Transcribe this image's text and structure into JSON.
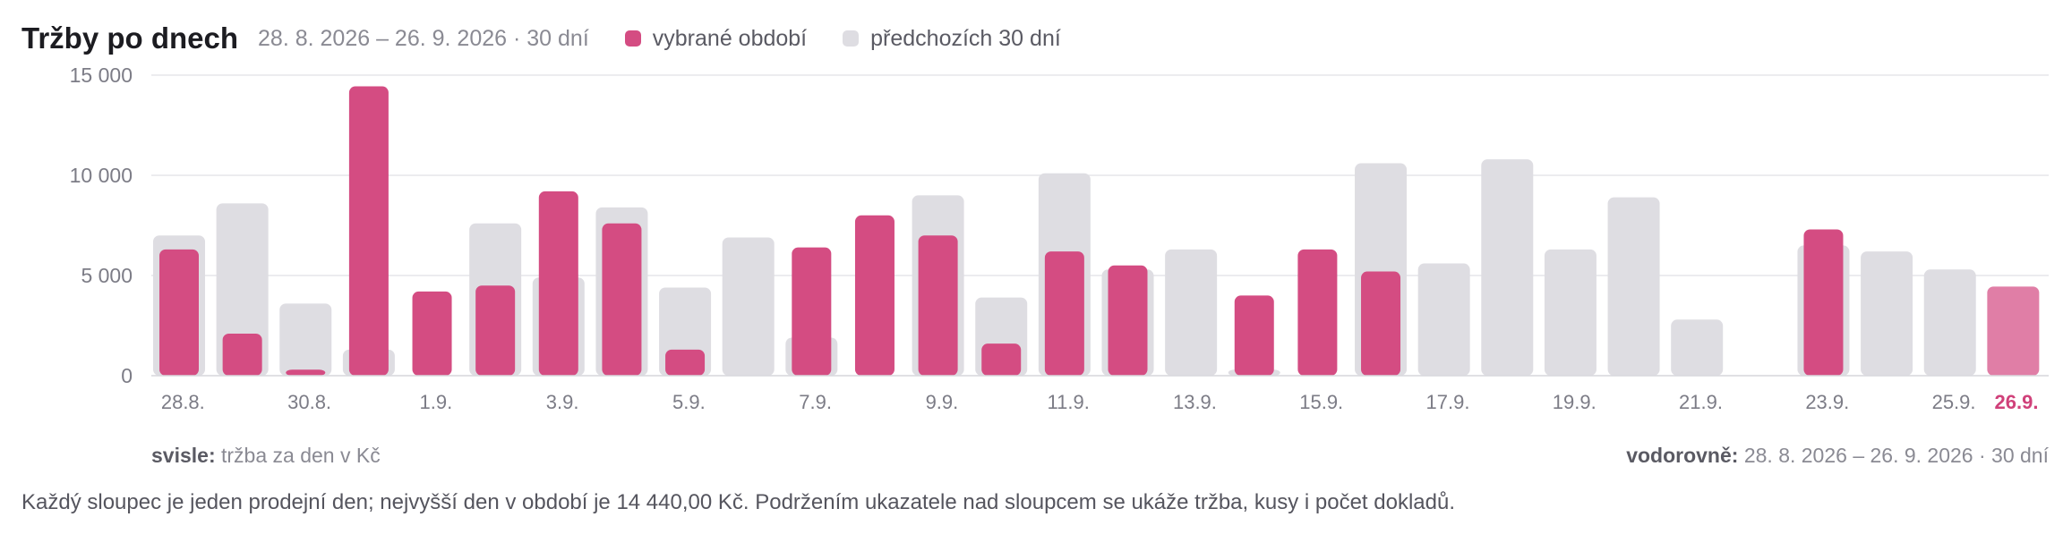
{
  "header": {
    "title": "Tržby po dnech",
    "range": "28. 8. 2026 – 26. 9. 2026 · 30 dní",
    "legend_current": "vybrané období",
    "legend_previous": "předchozích 30 dní"
  },
  "axis_notes": {
    "y_label": "svisle:",
    "y_text": "tržba za den v Kč",
    "x_label": "vodorovně:",
    "x_text": "28. 8. 2026 – 26. 9. 2026 · 30 dní"
  },
  "footer": {
    "text": "Každý sloupec je jeden prodejní den; nejvyšší den v období je 14 440,00 Kč. Podržením ukazatele nad sloupcem se ukáže tržba, kusy i počet dokladů."
  },
  "colors": {
    "current": "#d44c82",
    "current_today": "#e07ea6",
    "previous": "#dedde2",
    "today_label": "#d0417a",
    "grid": "#e6e6ea",
    "tick_text": "#7c7c86"
  },
  "chart_data": {
    "type": "bar",
    "categories": [
      "28.8.",
      "29.8.",
      "30.8.",
      "31.8.",
      "1.9.",
      "2.9.",
      "3.9.",
      "4.9.",
      "5.9.",
      "6.9.",
      "7.9.",
      "8.9.",
      "9.9.",
      "10.9.",
      "11.9.",
      "12.9.",
      "13.9.",
      "14.9.",
      "15.9.",
      "16.9.",
      "17.9.",
      "18.9.",
      "19.9.",
      "20.9.",
      "21.9.",
      "22.9.",
      "23.9.",
      "24.9.",
      "25.9.",
      "26.9."
    ],
    "x_tick_labels": [
      "28.8.",
      "",
      "30.8.",
      "",
      "1.9.",
      "",
      "3.9.",
      "",
      "5.9.",
      "",
      "7.9.",
      "",
      "9.9.",
      "",
      "11.9.",
      "",
      "13.9.",
      "",
      "15.9.",
      "",
      "17.9.",
      "",
      "19.9.",
      "",
      "21.9.",
      "",
      "23.9.",
      "",
      "25.9.",
      "26.9."
    ],
    "series": [
      {
        "name": "vybrané období",
        "values": [
          6300,
          2100,
          300,
          14440,
          4200,
          4500,
          9200,
          7600,
          1300,
          0,
          6400,
          8000,
          7000,
          1600,
          6200,
          5500,
          0,
          4000,
          6300,
          5200,
          0,
          0,
          0,
          0,
          0,
          0,
          7300,
          0,
          0,
          4450
        ]
      },
      {
        "name": "předchozích 30 dní",
        "values": [
          7000,
          8600,
          3600,
          1300,
          0,
          7600,
          4900,
          8400,
          4400,
          6900,
          1900,
          0,
          9000,
          3900,
          10100,
          5300,
          6300,
          300,
          0,
          10600,
          5600,
          10800,
          6300,
          8900,
          2800,
          0,
          6500,
          6200,
          5300,
          0
        ]
      }
    ],
    "highlight_category": "26.9.",
    "ylim": [
      0,
      15000
    ],
    "yticks": [
      0,
      5000,
      10000,
      15000
    ],
    "ytick_labels": [
      "0",
      "5 000",
      "10 000",
      "15 000"
    ],
    "grid": true,
    "legend_position": "top"
  }
}
